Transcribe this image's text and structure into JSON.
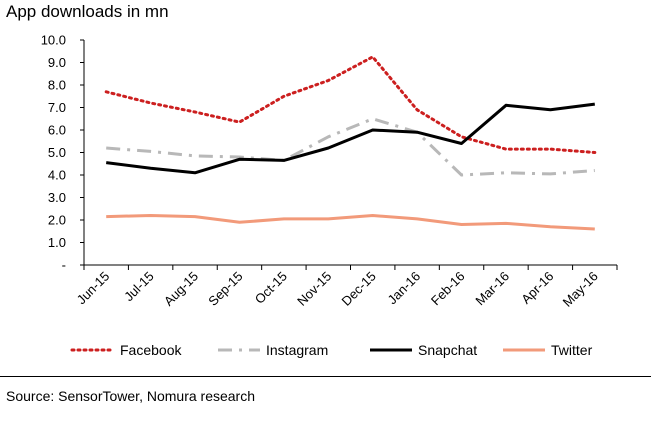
{
  "title": "App downloads in mn",
  "source": "Source: SensorTower, Nomura research",
  "chart_data": {
    "type": "line",
    "categories": [
      "Jun-15",
      "Jul-15",
      "Aug-15",
      "Sep-15",
      "Oct-15",
      "Nov-15",
      "Dec-15",
      "Jan-16",
      "Feb-16",
      "Mar-16",
      "Apr-16",
      "May-16"
    ],
    "ylim": [
      0,
      10
    ],
    "yticks": [
      "-",
      "1.0",
      "2.0",
      "3.0",
      "4.0",
      "5.0",
      "6.0",
      "7.0",
      "8.0",
      "9.0",
      "10.0"
    ],
    "grid": false,
    "legend_position": "bottom",
    "series": [
      {
        "name": "Facebook",
        "color": "#cc1f1f",
        "style": "dotted",
        "values": [
          7.7,
          7.2,
          6.8,
          6.35,
          7.5,
          8.2,
          9.25,
          6.9,
          5.7,
          5.15,
          5.15,
          5.0
        ]
      },
      {
        "name": "Instagram",
        "color": "#b8b8b8",
        "style": "dashdot",
        "values": [
          5.2,
          5.05,
          4.85,
          4.8,
          4.65,
          5.7,
          6.5,
          5.9,
          4.0,
          4.1,
          4.05,
          4.2
        ]
      },
      {
        "name": "Snapchat",
        "color": "#000000",
        "style": "solid",
        "values": [
          4.55,
          4.3,
          4.1,
          4.7,
          4.65,
          5.2,
          6.0,
          5.9,
          5.4,
          7.1,
          6.9,
          7.15
        ]
      },
      {
        "name": "Twitter",
        "color": "#f29a7a",
        "style": "solid",
        "values": [
          2.15,
          2.2,
          2.15,
          1.9,
          2.05,
          2.05,
          2.2,
          2.05,
          1.8,
          1.85,
          1.7,
          1.6
        ]
      }
    ]
  }
}
